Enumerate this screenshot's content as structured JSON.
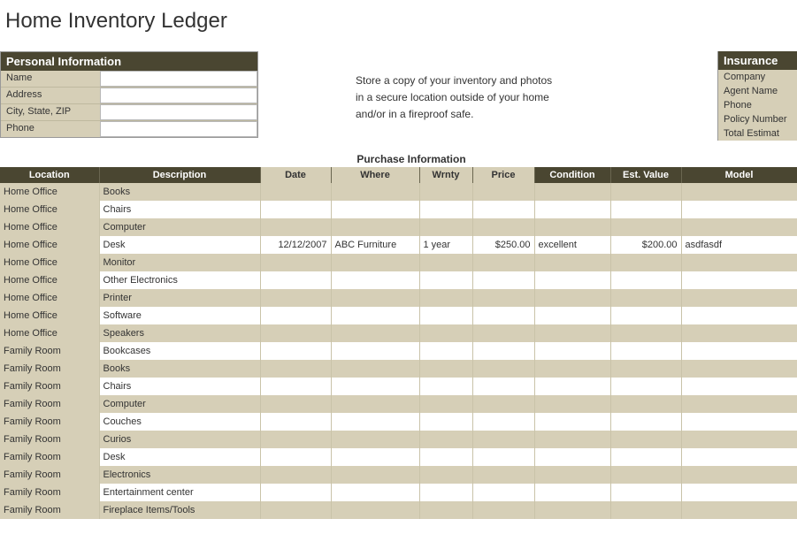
{
  "title": "Home Inventory Ledger",
  "personal": {
    "header": "Personal Information",
    "fields": [
      {
        "label": "Name",
        "value": ""
      },
      {
        "label": "Address",
        "value": ""
      },
      {
        "label": "City, State, ZIP",
        "value": ""
      },
      {
        "label": "Phone",
        "value": ""
      }
    ]
  },
  "note_lines": [
    "Store a copy of your inventory and photos",
    "in a secure location outside of your home",
    "and/or in a fireproof safe."
  ],
  "insurance": {
    "header": "Insurance",
    "rows": [
      "Company",
      "Agent Name",
      "Phone",
      "Policy Number",
      "Total Estimat"
    ]
  },
  "purchase_caption": "Purchase Information",
  "columns": [
    "Location",
    "Description",
    "Date",
    "Where",
    "Wrnty",
    "Price",
    "Condition",
    "Est. Value",
    "Model"
  ],
  "colors": {
    "header_bg": "#4a4631",
    "header_fg": "#ffffff",
    "band_bg": "#d6cfb7",
    "page_bg": "#ffffff",
    "text": "#333333"
  },
  "rows": [
    {
      "location": "Home Office",
      "description": "Books",
      "date": "",
      "where": "",
      "wrnty": "",
      "price": "",
      "condition": "",
      "est_value": "",
      "model": ""
    },
    {
      "location": "Home Office",
      "description": "Chairs",
      "date": "",
      "where": "",
      "wrnty": "",
      "price": "",
      "condition": "",
      "est_value": "",
      "model": ""
    },
    {
      "location": "Home Office",
      "description": "Computer",
      "date": "",
      "where": "",
      "wrnty": "",
      "price": "",
      "condition": "",
      "est_value": "",
      "model": ""
    },
    {
      "location": "Home Office",
      "description": "Desk",
      "date": "12/12/2007",
      "where": "ABC Furniture",
      "wrnty": "1 year",
      "price": "$250.00",
      "condition": "excellent",
      "est_value": "$200.00",
      "model": "asdfasdf"
    },
    {
      "location": "Home Office",
      "description": "Monitor",
      "date": "",
      "where": "",
      "wrnty": "",
      "price": "",
      "condition": "",
      "est_value": "",
      "model": ""
    },
    {
      "location": "Home Office",
      "description": "Other Electronics",
      "date": "",
      "where": "",
      "wrnty": "",
      "price": "",
      "condition": "",
      "est_value": "",
      "model": ""
    },
    {
      "location": "Home Office",
      "description": "Printer",
      "date": "",
      "where": "",
      "wrnty": "",
      "price": "",
      "condition": "",
      "est_value": "",
      "model": ""
    },
    {
      "location": "Home Office",
      "description": "Software",
      "date": "",
      "where": "",
      "wrnty": "",
      "price": "",
      "condition": "",
      "est_value": "",
      "model": ""
    },
    {
      "location": "Home Office",
      "description": "Speakers",
      "date": "",
      "where": "",
      "wrnty": "",
      "price": "",
      "condition": "",
      "est_value": "",
      "model": ""
    },
    {
      "location": "Family Room",
      "description": "Bookcases",
      "date": "",
      "where": "",
      "wrnty": "",
      "price": "",
      "condition": "",
      "est_value": "",
      "model": ""
    },
    {
      "location": "Family Room",
      "description": "Books",
      "date": "",
      "where": "",
      "wrnty": "",
      "price": "",
      "condition": "",
      "est_value": "",
      "model": ""
    },
    {
      "location": "Family Room",
      "description": "Chairs",
      "date": "",
      "where": "",
      "wrnty": "",
      "price": "",
      "condition": "",
      "est_value": "",
      "model": ""
    },
    {
      "location": "Family Room",
      "description": "Computer",
      "date": "",
      "where": "",
      "wrnty": "",
      "price": "",
      "condition": "",
      "est_value": "",
      "model": ""
    },
    {
      "location": "Family Room",
      "description": "Couches",
      "date": "",
      "where": "",
      "wrnty": "",
      "price": "",
      "condition": "",
      "est_value": "",
      "model": ""
    },
    {
      "location": "Family Room",
      "description": "Curios",
      "date": "",
      "where": "",
      "wrnty": "",
      "price": "",
      "condition": "",
      "est_value": "",
      "model": ""
    },
    {
      "location": "Family Room",
      "description": "Desk",
      "date": "",
      "where": "",
      "wrnty": "",
      "price": "",
      "condition": "",
      "est_value": "",
      "model": ""
    },
    {
      "location": "Family Room",
      "description": "Electronics",
      "date": "",
      "where": "",
      "wrnty": "",
      "price": "",
      "condition": "",
      "est_value": "",
      "model": ""
    },
    {
      "location": "Family Room",
      "description": "Entertainment center",
      "date": "",
      "where": "",
      "wrnty": "",
      "price": "",
      "condition": "",
      "est_value": "",
      "model": ""
    },
    {
      "location": "Family Room",
      "description": "Fireplace Items/Tools",
      "date": "",
      "where": "",
      "wrnty": "",
      "price": "",
      "condition": "",
      "est_value": "",
      "model": ""
    }
  ]
}
